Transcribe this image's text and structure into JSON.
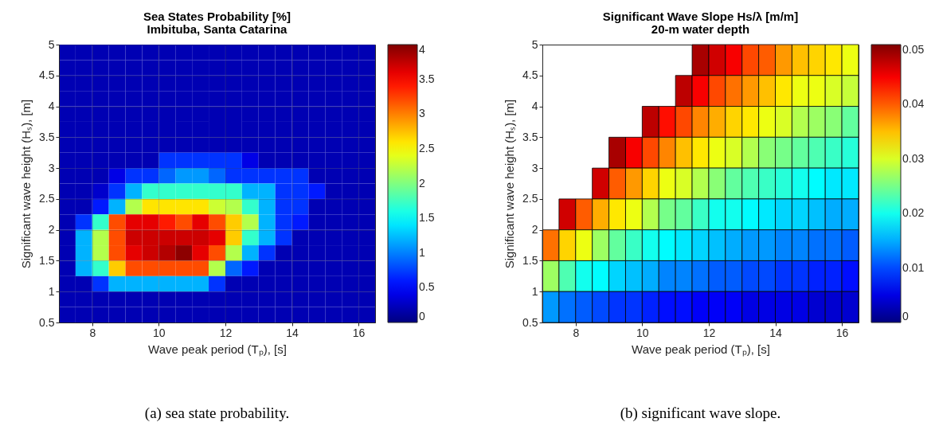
{
  "chart_data": [
    {
      "type": "heatmap",
      "title": "Sea States Probability [%]",
      "subtitle": "Imbituba, Santa Catarina",
      "xlabel": "Wave peak period (Tₚ), [s]",
      "ylabel": "Significant wave height (Hₛ), [m]",
      "x": [
        7.25,
        7.75,
        8.25,
        8.75,
        9.25,
        9.75,
        10.25,
        10.75,
        11.25,
        11.75,
        12.25,
        12.75,
        13.25,
        13.75,
        14.25,
        14.75,
        15.25,
        15.75,
        16.25
      ],
      "y": [
        4.875,
        4.625,
        4.375,
        4.125,
        3.875,
        3.625,
        3.375,
        3.125,
        2.875,
        2.625,
        2.375,
        2.125,
        1.875,
        1.625,
        1.375,
        1.125,
        0.875,
        0.625
      ],
      "cells": [
        [
          0.2,
          0.2,
          0.2,
          0.2,
          0.2,
          0.2,
          0.2,
          0.2,
          0.2,
          0.2,
          0.2,
          0.2,
          0.2,
          0.2,
          0.2,
          0.2,
          0.2,
          0.2,
          0.2
        ],
        [
          0.2,
          0.2,
          0.2,
          0.2,
          0.2,
          0.2,
          0.2,
          0.2,
          0.2,
          0.2,
          0.2,
          0.2,
          0.2,
          0.2,
          0.2,
          0.2,
          0.2,
          0.2,
          0.2
        ],
        [
          0.2,
          0.2,
          0.2,
          0.2,
          0.2,
          0.2,
          0.2,
          0.2,
          0.2,
          0.2,
          0.2,
          0.2,
          0.2,
          0.2,
          0.2,
          0.2,
          0.2,
          0.2,
          0.2
        ],
        [
          0.2,
          0.2,
          0.2,
          0.2,
          0.2,
          0.2,
          0.2,
          0.2,
          0.2,
          0.2,
          0.2,
          0.2,
          0.2,
          0.2,
          0.2,
          0.2,
          0.2,
          0.2,
          0.2
        ],
        [
          0.2,
          0.2,
          0.2,
          0.2,
          0.2,
          0.2,
          0.2,
          0.2,
          0.2,
          0.2,
          0.2,
          0.2,
          0.2,
          0.2,
          0.2,
          0.2,
          0.2,
          0.2,
          0.2
        ],
        [
          0.2,
          0.2,
          0.2,
          0.2,
          0.2,
          0.2,
          0.2,
          0.2,
          0.2,
          0.2,
          0.2,
          0.2,
          0.2,
          0.2,
          0.2,
          0.2,
          0.2,
          0.2,
          0.2
        ],
        [
          0.2,
          0.2,
          0.2,
          0.2,
          0.2,
          0.2,
          0.2,
          0.2,
          0.2,
          0.2,
          0.2,
          0.2,
          0.2,
          0.2,
          0.2,
          0.2,
          0.2,
          0.2,
          0.2
        ],
        [
          0.2,
          0.2,
          0.2,
          0.2,
          0.2,
          0.2,
          0.7,
          0.7,
          0.7,
          0.7,
          0.7,
          0.4,
          0.2,
          0.2,
          0.2,
          0.2,
          0.2,
          0.2,
          0.2
        ],
        [
          0.2,
          0.2,
          0.2,
          0.4,
          0.7,
          0.7,
          0.9,
          1.1,
          1.1,
          0.9,
          0.7,
          0.7,
          0.7,
          0.7,
          0.7,
          0.2,
          0.2,
          0.2,
          0.2
        ],
        [
          0.2,
          0.2,
          0.3,
          0.7,
          1.2,
          1.7,
          1.7,
          1.7,
          1.7,
          1.7,
          1.7,
          1.2,
          1.2,
          0.7,
          0.7,
          0.6,
          0.2,
          0.2,
          0.2
        ],
        [
          0.2,
          0.2,
          0.6,
          1.2,
          2.2,
          2.6,
          2.6,
          2.6,
          2.6,
          2.3,
          2.2,
          1.7,
          1.2,
          0.7,
          0.7,
          0.2,
          0.2,
          0.2,
          0.2
        ],
        [
          0.2,
          0.7,
          1.7,
          3.2,
          3.6,
          3.6,
          3.4,
          3.2,
          3.6,
          3.2,
          2.7,
          2.2,
          1.2,
          0.7,
          0.6,
          0.2,
          0.2,
          0.2,
          0.2
        ],
        [
          0.2,
          1.2,
          2.2,
          3.2,
          3.7,
          3.7,
          3.7,
          3.7,
          3.7,
          3.6,
          2.7,
          1.7,
          1.2,
          0.7,
          0.2,
          0.2,
          0.2,
          0.2,
          0.2
        ],
        [
          0.2,
          1.2,
          2.2,
          3.2,
          3.6,
          3.7,
          3.8,
          3.95,
          3.6,
          3.2,
          2.2,
          1.2,
          0.7,
          0.2,
          0.2,
          0.2,
          0.2,
          0.2,
          0.2
        ],
        [
          0.2,
          1.2,
          1.7,
          2.7,
          3.2,
          3.2,
          3.2,
          3.2,
          3.2,
          2.2,
          0.9,
          0.6,
          0.2,
          0.2,
          0.2,
          0.2,
          0.2,
          0.2,
          0.2
        ],
        [
          0.2,
          0.2,
          0.7,
          1.2,
          1.2,
          1.2,
          1.2,
          1.2,
          1.2,
          0.7,
          0.2,
          0.2,
          0.2,
          0.2,
          0.2,
          0.2,
          0.2,
          0.2,
          0.2
        ],
        [
          0.2,
          0.2,
          0.2,
          0.2,
          0.2,
          0.2,
          0.2,
          0.2,
          0.2,
          0.2,
          0.2,
          0.2,
          0.2,
          0.2,
          0.2,
          0.2,
          0.2,
          0.2,
          0.2
        ],
        [
          0.2,
          0.2,
          0.2,
          0.2,
          0.2,
          0.2,
          0.2,
          0.2,
          0.2,
          0.2,
          0.2,
          0.2,
          0.2,
          0.2,
          0.2,
          0.2,
          0.2,
          0.2,
          0.2
        ]
      ],
      "clim": [
        0,
        4
      ],
      "cticks": [
        0,
        0.5,
        1,
        1.5,
        2,
        2.5,
        3,
        3.5,
        4
      ],
      "xlim": [
        7,
        16.5
      ],
      "xticks": [
        8,
        10,
        12,
        14,
        16
      ],
      "ylim": [
        0.5,
        5
      ],
      "yticks": [
        0.5,
        1,
        1.5,
        2,
        2.5,
        3,
        3.5,
        4,
        4.5,
        5
      ],
      "grid": true,
      "annotations": [
        "(a) sea state probability."
      ]
    },
    {
      "type": "heatmap",
      "title": "Significant Wave Slope Hs/λ [m/m]",
      "subtitle": "20-m water depth",
      "xlabel": "Wave peak period (Tₚ), [s]",
      "ylabel": "Significant wave height (Hₛ), [m]",
      "x": [
        7.25,
        7.75,
        8.25,
        8.75,
        9.25,
        9.75,
        10.25,
        10.75,
        11.25,
        11.75,
        12.25,
        12.75,
        13.25,
        13.75,
        14.25,
        14.75,
        15.25,
        15.75,
        16.25
      ],
      "y": [
        4.75,
        4.25,
        3.75,
        3.25,
        2.75,
        2.25,
        1.75,
        1.25,
        0.75
      ],
      "cells": [
        [
          null,
          null,
          null,
          null,
          null,
          null,
          null,
          null,
          null,
          0.049,
          0.047,
          0.045,
          0.041,
          0.04,
          0.037,
          0.035,
          0.034,
          0.033,
          0.031
        ],
        [
          null,
          null,
          null,
          null,
          null,
          null,
          null,
          null,
          0.048,
          0.045,
          0.041,
          0.039,
          0.037,
          0.035,
          0.033,
          0.031,
          0.031,
          0.03,
          0.029
        ],
        [
          null,
          null,
          null,
          null,
          null,
          null,
          0.048,
          0.044,
          0.041,
          0.038,
          0.036,
          0.034,
          0.033,
          0.031,
          0.03,
          0.028,
          0.027,
          0.026,
          0.024
        ],
        [
          null,
          null,
          null,
          null,
          0.049,
          0.045,
          0.041,
          0.038,
          0.035,
          0.033,
          0.031,
          0.03,
          0.028,
          0.026,
          0.025,
          0.024,
          0.023,
          0.022,
          0.021
        ],
        [
          null,
          null,
          null,
          0.047,
          0.04,
          0.037,
          0.034,
          0.031,
          0.03,
          0.028,
          0.026,
          0.024,
          0.023,
          0.022,
          0.021,
          0.02,
          0.019,
          0.018,
          0.018
        ],
        [
          null,
          0.047,
          0.04,
          0.036,
          0.033,
          0.031,
          0.028,
          0.025,
          0.024,
          0.022,
          0.02,
          0.02,
          0.019,
          0.018,
          0.017,
          0.017,
          0.016,
          0.015,
          0.015
        ],
        [
          0.039,
          0.034,
          0.031,
          0.027,
          0.024,
          0.022,
          0.02,
          0.019,
          0.018,
          0.017,
          0.016,
          0.015,
          0.014,
          0.014,
          0.013,
          0.013,
          0.012,
          0.012,
          0.011
        ],
        [
          0.027,
          0.023,
          0.02,
          0.019,
          0.017,
          0.016,
          0.015,
          0.013,
          0.013,
          0.012,
          0.011,
          0.011,
          0.01,
          0.01,
          0.009,
          0.009,
          0.008,
          0.008,
          0.007
        ],
        [
          0.014,
          0.012,
          0.011,
          0.01,
          0.009,
          0.009,
          0.008,
          0.007,
          0.007,
          0.006,
          0.006,
          0.006,
          0.005,
          0.005,
          0.005,
          0.005,
          0.004,
          0.004,
          0.004
        ]
      ],
      "clim": [
        0,
        0.051
      ],
      "cticks": [
        0,
        0.01,
        0.02,
        0.03,
        0.04,
        0.05
      ],
      "xlim": [
        7,
        16.5
      ],
      "xticks": [
        8,
        10,
        12,
        14,
        16
      ],
      "ylim": [
        0.5,
        5
      ],
      "yticks": [
        0.5,
        1,
        1.5,
        2,
        2.5,
        3,
        3.5,
        4,
        4.5,
        5
      ],
      "annotations": [
        "(b) significant wave slope."
      ]
    }
  ]
}
